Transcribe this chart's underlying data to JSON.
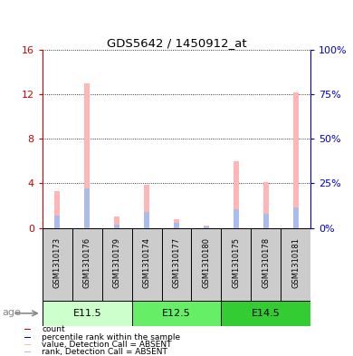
{
  "title": "GDS5642 / 1450912_at",
  "samples": [
    "GSM1310173",
    "GSM1310176",
    "GSM1310179",
    "GSM1310174",
    "GSM1310177",
    "GSM1310180",
    "GSM1310175",
    "GSM1310178",
    "GSM1310181"
  ],
  "absent_values": [
    3.3,
    13.0,
    1.0,
    3.9,
    0.8,
    0.2,
    6.0,
    4.1,
    12.2
  ],
  "absent_ranks_pct": [
    7.0,
    22.0,
    2.0,
    9.0,
    3.0,
    1.0,
    10.5,
    8.0,
    11.5
  ],
  "ylim_left": [
    0,
    16
  ],
  "ylim_right": [
    0,
    100
  ],
  "yticks_left": [
    0,
    4,
    8,
    12,
    16
  ],
  "yticks_right": [
    0,
    25,
    50,
    75,
    100
  ],
  "ytick_labels_left": [
    "0",
    "4",
    "8",
    "12",
    "16"
  ],
  "ytick_labels_right": [
    "0%",
    "25%",
    "50%",
    "75%",
    "100%"
  ],
  "age_groups": [
    {
      "label": "E11.5",
      "start": 0,
      "end": 2,
      "color": "#CCFFCC"
    },
    {
      "label": "E12.5",
      "start": 3,
      "end": 5,
      "color": "#66EE66"
    },
    {
      "label": "E14.5",
      "start": 6,
      "end": 8,
      "color": "#33CC33"
    }
  ],
  "bar_width": 0.18,
  "absent_bar_color": "#FFB6B6",
  "absent_rank_color": "#AABBEE",
  "present_bar_color": "#CC0000",
  "present_rank_color": "#0000BB",
  "bg_color": "#FFFFFF",
  "left_axis_color": "#CC0000",
  "right_axis_color": "#0000CC",
  "sample_bg_color": "#CCCCCC",
  "age_label": "age",
  "legend_colors": [
    "#CC0000",
    "#0000BB",
    "#FFB6B6",
    "#AABBEE"
  ],
  "legend_labels": [
    "count",
    "percentile rank within the sample",
    "value, Detection Call = ABSENT",
    "rank, Detection Call = ABSENT"
  ]
}
